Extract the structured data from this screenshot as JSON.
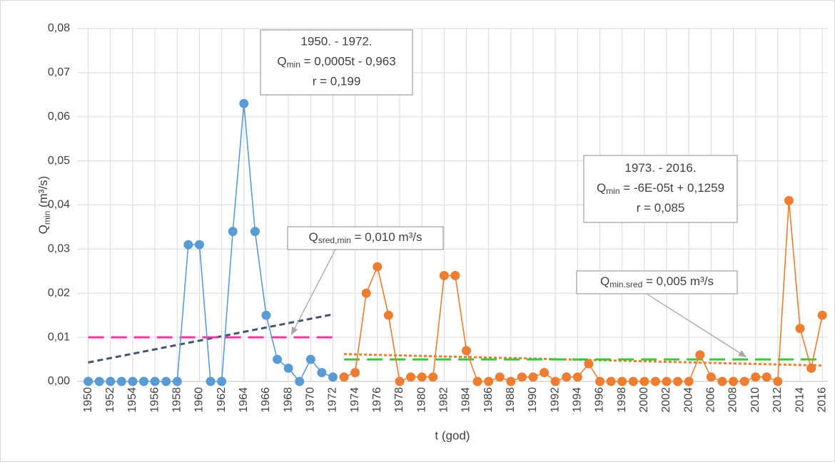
{
  "chart_data": {
    "type": "line",
    "xlabel": "t (god)",
    "ylabel": [
      {
        "text": "Q"
      },
      {
        "text": "min",
        "sub": true
      },
      {
        "text": " (m³/s)"
      }
    ],
    "xlim": [
      1949,
      2016.5
    ],
    "ylim": [
      0,
      0.08
    ],
    "xticks": [
      1950,
      1952,
      1954,
      1956,
      1958,
      1960,
      1962,
      1964,
      1966,
      1968,
      1970,
      1972,
      1974,
      1976,
      1978,
      1980,
      1982,
      1984,
      1986,
      1988,
      1990,
      1992,
      1994,
      1996,
      1998,
      2000,
      2002,
      2004,
      2006,
      2008,
      2010,
      2012,
      2014,
      2016
    ],
    "yticks": [
      {
        "value": 0,
        "label": "0,00"
      },
      {
        "value": 0.01,
        "label": "0,01"
      },
      {
        "value": 0.02,
        "label": "0,02"
      },
      {
        "value": 0.03,
        "label": "0,03"
      },
      {
        "value": 0.04,
        "label": "0,04"
      },
      {
        "value": 0.05,
        "label": "0,05"
      },
      {
        "value": 0.06,
        "label": "0,06"
      },
      {
        "value": 0.07,
        "label": "0,07"
      },
      {
        "value": 0.08,
        "label": "0,08"
      }
    ],
    "grid": true,
    "series": [
      {
        "color": "#5b9bd5",
        "x": [
          1950,
          1951,
          1952,
          1953,
          1954,
          1955,
          1956,
          1957,
          1958,
          1959,
          1960,
          1961,
          1962,
          1963,
          1964,
          1965,
          1966,
          1967,
          1968,
          1969,
          1970,
          1971,
          1972
        ],
        "values": [
          0,
          0,
          0,
          0,
          0,
          0,
          0,
          0,
          0,
          0.031,
          0.031,
          0,
          0,
          0.034,
          0.063,
          0.034,
          0.015,
          0.005,
          0.003,
          0,
          0.005,
          0.002,
          0.001
        ]
      },
      {
        "color": "#ed7d31",
        "x": [
          1973,
          1974,
          1975,
          1976,
          1977,
          1978,
          1979,
          1980,
          1981,
          1982,
          1983,
          1984,
          1985,
          1986,
          1987,
          1988,
          1989,
          1990,
          1991,
          1992,
          1993,
          1994,
          1995,
          1996,
          1997,
          1998,
          1999,
          2000,
          2001,
          2002,
          2003,
          2004,
          2005,
          2006,
          2007,
          2008,
          2009,
          2010,
          2011,
          2012,
          2013,
          2014,
          2015,
          2016
        ],
        "values": [
          0.001,
          0.002,
          0.02,
          0.026,
          0.015,
          0,
          0.001,
          0.001,
          0.001,
          0.024,
          0.024,
          0.007,
          0,
          0,
          0.001,
          0,
          0.001,
          0.001,
          0.002,
          0,
          0.001,
          0.001,
          0.004,
          0,
          0,
          0,
          0,
          0,
          0,
          0,
          0,
          0,
          0.006,
          0.001,
          0,
          0,
          0,
          0.001,
          0.001,
          0,
          0.041,
          0.012,
          0.003,
          0.015
        ]
      }
    ],
    "reference_lines": [
      {
        "x": [
          1950,
          1972
        ],
        "values": [
          0.0043,
          0.0152
        ],
        "color": "#44546a",
        "dash": "8 5",
        "width": 3
      },
      {
        "x": [
          1973,
          2016
        ],
        "values": [
          0.0062,
          0.0036
        ],
        "color": "#ed7d31",
        "dash": "4 3",
        "width": 3
      },
      {
        "x": [
          1950,
          1972
        ],
        "values": [
          0.01,
          0.01
        ],
        "color": "#ff3399",
        "dash": "22 10",
        "width": 3
      },
      {
        "x": [
          1973,
          2016
        ],
        "values": [
          0.005,
          0.005
        ],
        "color": "#33cc33",
        "dash": "22 10",
        "width": 3
      }
    ],
    "annotations": [
      {
        "lines": [
          [
            {
              "text": "1950. - 1972."
            }
          ],
          [
            {
              "text": "Q"
            },
            {
              "text": "min",
              "sub": true
            },
            {
              "text": " = 0,0005t - 0,963"
            }
          ],
          [
            {
              "text": "r = 0,199"
            }
          ]
        ]
      },
      {
        "lines": [
          [
            {
              "text": "1973. - 2016."
            }
          ],
          [
            {
              "text": "Q"
            },
            {
              "text": "min",
              "sub": true
            },
            {
              "text": " = -6E-05t + 0,1259"
            }
          ],
          [
            {
              "text": "r = 0,085"
            }
          ]
        ]
      },
      {
        "lines": [
          [
            {
              "text": "Q"
            },
            {
              "text": "sred,min",
              "sub": true
            },
            {
              "text": " = 0,010 m³/s"
            }
          ]
        ]
      },
      {
        "lines": [
          [
            {
              "text": "Q"
            },
            {
              "text": "min.sred",
              "sub": true
            },
            {
              "text": " = 0,005 m³/s"
            }
          ]
        ]
      }
    ]
  }
}
